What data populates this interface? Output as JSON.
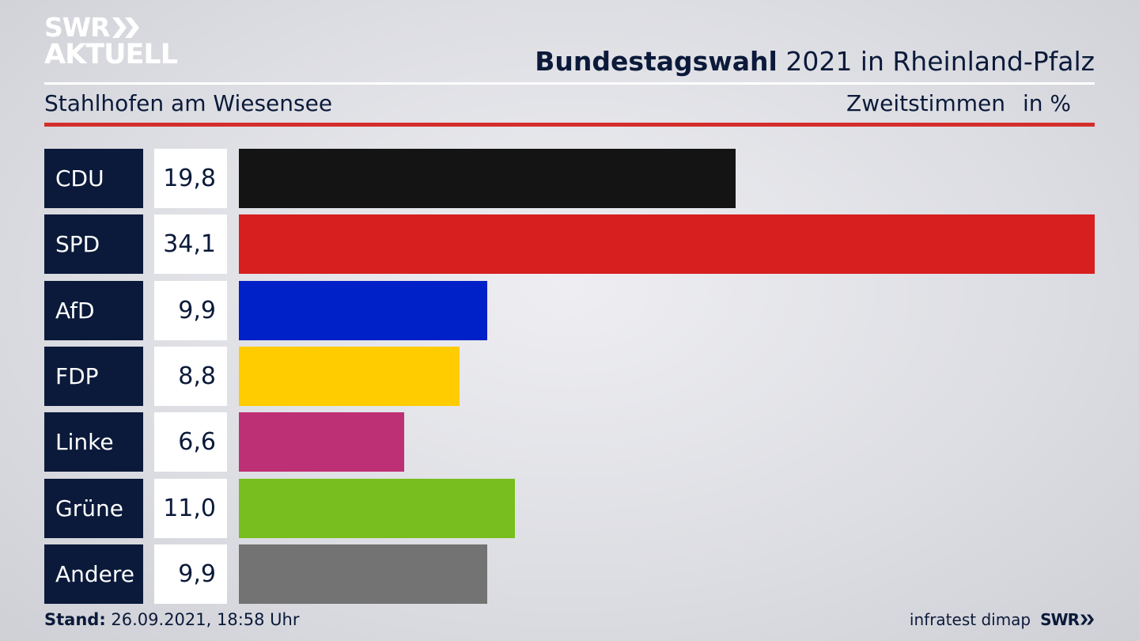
{
  "logo": {
    "line1": "SWR",
    "line2": "AKTUELL"
  },
  "header": {
    "title_bold": "Bundestagswahl",
    "title_rest": " 2021 in Rheinland-Pfalz",
    "subtitle": "Stahlhofen am Wiesensee",
    "measure": "Zweitstimmen",
    "unit": "in %"
  },
  "chart_data": {
    "type": "bar",
    "orientation": "horizontal",
    "title": "Bundestagswahl 2021 in Rheinland-Pfalz",
    "subtitle": "Stahlhofen am Wiesensee",
    "xlabel": "Zweitstimmen in %",
    "categories": [
      "CDU",
      "SPD",
      "AfD",
      "FDP",
      "Linke",
      "Grüne",
      "Andere"
    ],
    "values": [
      19.8,
      34.1,
      9.9,
      8.8,
      6.6,
      11.0,
      9.9
    ],
    "value_labels": [
      "19,8",
      "34,1",
      "9,9",
      "8,8",
      "6,6",
      "11,0",
      "9,9"
    ],
    "colors": [
      "#141414",
      "#d71f1f",
      "#0020c8",
      "#ffcc00",
      "#be3075",
      "#78be1e",
      "#737373"
    ],
    "xlim": [
      0,
      34.1
    ],
    "grid": false,
    "legend": "none"
  },
  "footer": {
    "stand_label": "Stand:",
    "stand_value": " 26.09.2021, 18:58 Uhr",
    "source": "infratest dimap",
    "brand": "SWR"
  }
}
